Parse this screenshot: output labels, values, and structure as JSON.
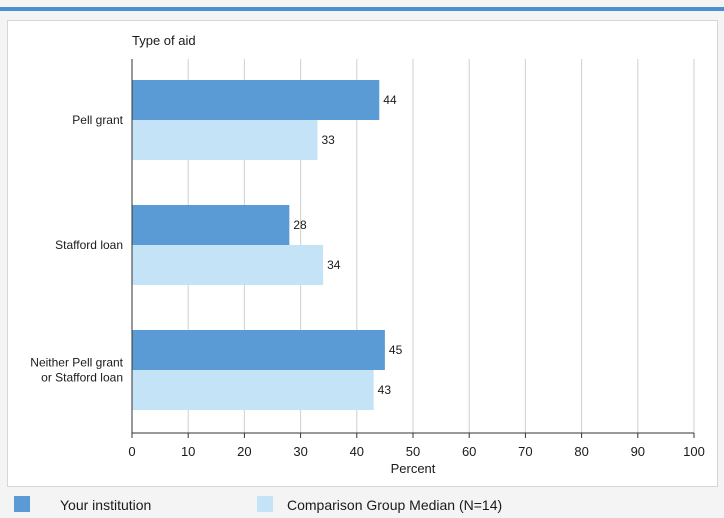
{
  "chart_data": {
    "type": "bar",
    "orientation": "horizontal",
    "ylabel": "Type of aid",
    "xlabel": "Percent",
    "xlim": [
      0,
      100
    ],
    "xticks": [
      0,
      10,
      20,
      30,
      40,
      50,
      60,
      70,
      80,
      90,
      100
    ],
    "categories": [
      [
        "Pell grant"
      ],
      [
        "Stafford loan"
      ],
      [
        "Neither Pell grant",
        "or Stafford loan"
      ]
    ],
    "series": [
      {
        "name": "Your institution",
        "color": "#5b9bd5",
        "values": [
          44,
          28,
          45
        ]
      },
      {
        "name": "Comparison Group Median (N=14)",
        "color": "#c5e3f6",
        "values": [
          33,
          34,
          43
        ]
      }
    ],
    "grid": "vertical",
    "legend": "bottom"
  }
}
